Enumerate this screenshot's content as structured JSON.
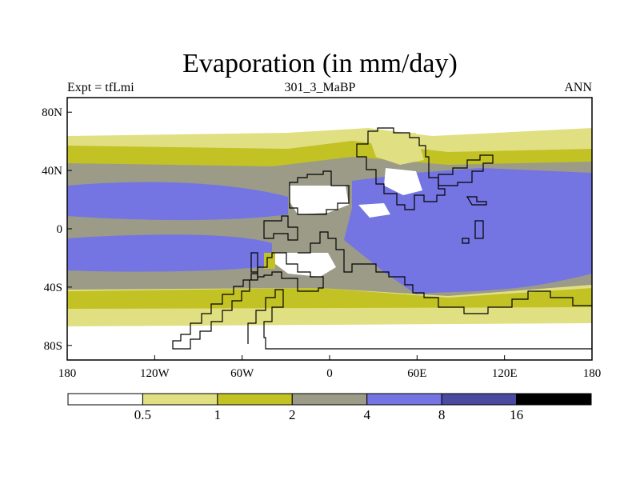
{
  "title": "Evaporation (in mm/day)",
  "subtitle_left": "Expt = tfLmi",
  "subtitle_center": "301_3_MaBP",
  "subtitle_right": "ANN",
  "colors": {
    "level_0": "#ffffff",
    "level_1": "#e0e083",
    "level_2": "#c2c224",
    "level_3": "#9b9b88",
    "level_4": "#7474e2",
    "level_5": "#4a4a9e",
    "level_6": "#000000"
  },
  "chart_data": {
    "type": "heatmap",
    "title": "Evaporation (in mm/day)",
    "units": "mm/day",
    "experiment": "tfLmi",
    "run": "301_3_MaBP",
    "season": "ANN",
    "x_axis": {
      "range": [
        -180,
        180
      ],
      "ticks": [
        -180,
        -120,
        -60,
        0,
        60,
        120,
        180
      ],
      "tick_labels": [
        "180",
        "120W",
        "60W",
        "0",
        "60E",
        "120E",
        "180"
      ]
    },
    "y_axis": {
      "range": [
        -90,
        90
      ],
      "ticks": [
        80,
        40,
        0,
        -40,
        -80
      ],
      "tick_labels": [
        "80N",
        "40N",
        "0",
        "40S",
        "80S"
      ]
    },
    "colorbar": {
      "levels": [
        0.5,
        1,
        2,
        4,
        8,
        16
      ],
      "labels": [
        "0.5",
        "1",
        "2",
        "4",
        "8",
        "16"
      ],
      "bins": 7
    }
  }
}
